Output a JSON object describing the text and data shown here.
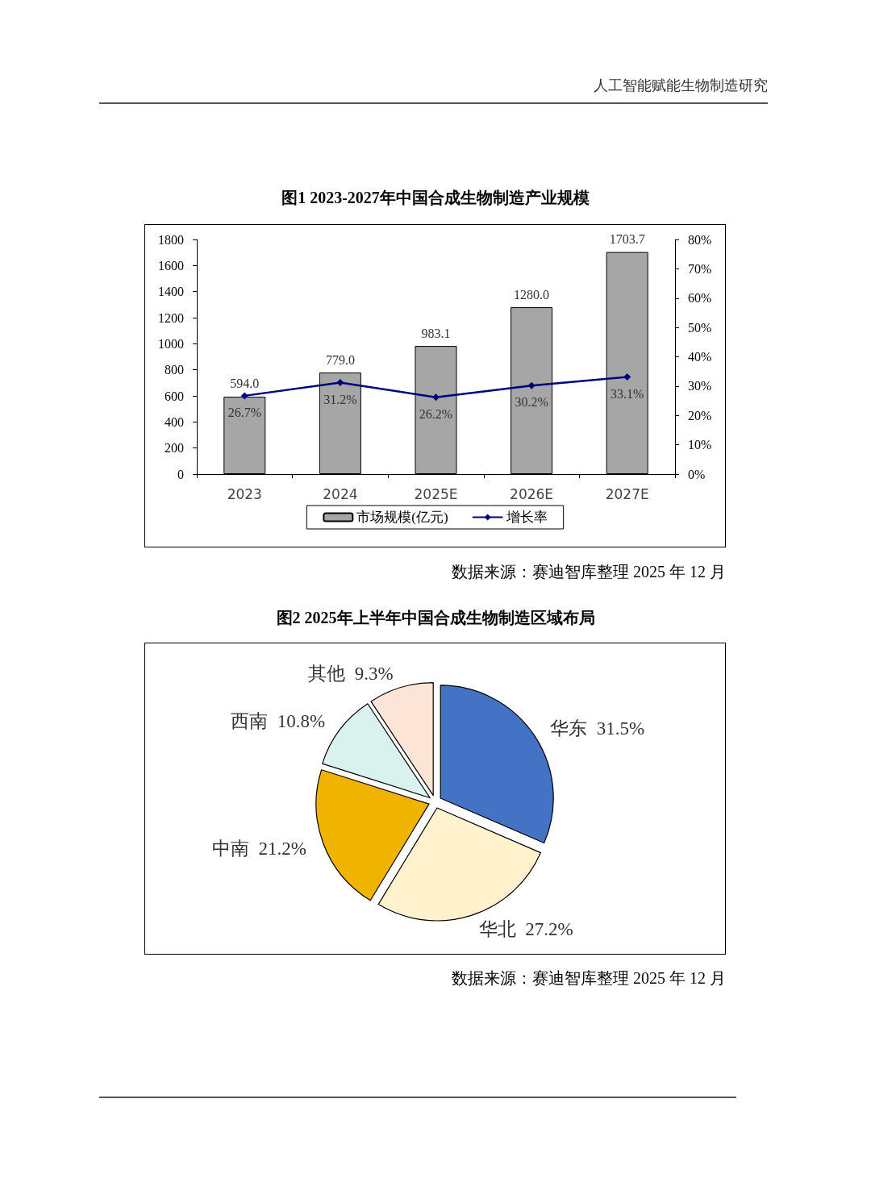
{
  "chart_data": [
    {
      "type": "bar",
      "title": "图1 2023-2027年中国合成生物制造产业规模",
      "annotations": [
        "人工智能赋能生物制造研究",
        "数据来源：赛迪智库整理 2025 年 12 月"
      ],
      "categories": [
        "2023",
        "2024",
        "2025E",
        "2026E",
        "2027E"
      ],
      "series": [
        {
          "name": "市场规模(亿元)",
          "type": "bar",
          "color": "#a6a6a6",
          "values": [
            594.0,
            779.0,
            983.1,
            1280.0,
            1703.7
          ],
          "value_labels": [
            "594.0",
            "779.0",
            "983.1",
            "1280.0",
            "1703.7"
          ]
        },
        {
          "name": "增长率",
          "type": "line",
          "axis": "y2",
          "color": "#000080",
          "values": [
            26.7,
            31.2,
            26.2,
            30.2,
            33.1
          ],
          "value_labels": [
            "26.7%",
            "31.2%",
            "26.2%",
            "30.2%",
            "33.1%"
          ]
        }
      ],
      "ylim": [
        0,
        1800
      ],
      "yticks": [
        0,
        200,
        400,
        600,
        800,
        1000,
        1200,
        1400,
        1600,
        1800
      ],
      "y2lim": [
        0,
        80
      ],
      "y2ticks": [
        {
          "value": 0,
          "label": "0%"
        },
        {
          "value": 10,
          "label": "10%"
        },
        {
          "value": 20,
          "label": "20%"
        },
        {
          "value": 30,
          "label": "30%"
        },
        {
          "value": 40,
          "label": "40%"
        },
        {
          "value": 50,
          "label": "50%"
        },
        {
          "value": 60,
          "label": "60%"
        },
        {
          "value": 70,
          "label": "70%"
        },
        {
          "value": 80,
          "label": "80%"
        }
      ],
      "marker": "diamond",
      "legend": "bottom",
      "grid": false
    },
    {
      "type": "pie",
      "title": "图2 2025年上半年中国合成生物制造区域布局",
      "annotations": [
        "数据来源：赛迪智库整理 2025 年 12 月"
      ],
      "categories": [
        "华东",
        "华北",
        "中南",
        "西南",
        "其他"
      ],
      "values": [
        31.5,
        27.2,
        21.2,
        10.8,
        9.3
      ],
      "value_labels": [
        "31.5%",
        "27.2%",
        "21.2%",
        "10.8%",
        "9.3%"
      ],
      "colors": [
        "#4472c4",
        "#fff2cc",
        "#f0b400",
        "#d9f2ee",
        "#fce4d6"
      ]
    }
  ]
}
